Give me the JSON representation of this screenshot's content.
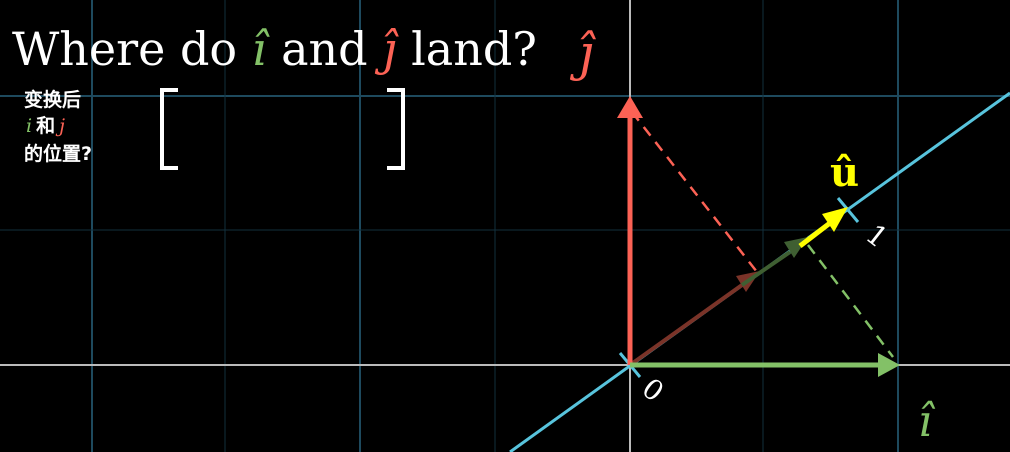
{
  "title": {
    "prefix": "Where do ",
    "i_hat": "î",
    "middle": " and ",
    "j_hat": "ĵ",
    "suffix": " land?",
    "j_hat_label": "ĵ"
  },
  "caption": {
    "line1": "变换后",
    "i_letter": "i",
    "and_word": "和",
    "j_letter": "j",
    "line3": "的位置?"
  },
  "labels": {
    "u_hat": "û",
    "one": "1",
    "zero": "0",
    "i_hat_axis": "î"
  },
  "colors": {
    "background": "#000000",
    "grid": "#1e4a5e",
    "axis": "#bbbbbb",
    "line_u": "#58c4dd",
    "i_hat": "#83c167",
    "j_hat": "#fc6255",
    "u_hat": "#ffff00",
    "projection_j": "#7a3328",
    "projection_i": "#3f5f32",
    "text": "#ffffff"
  }
}
